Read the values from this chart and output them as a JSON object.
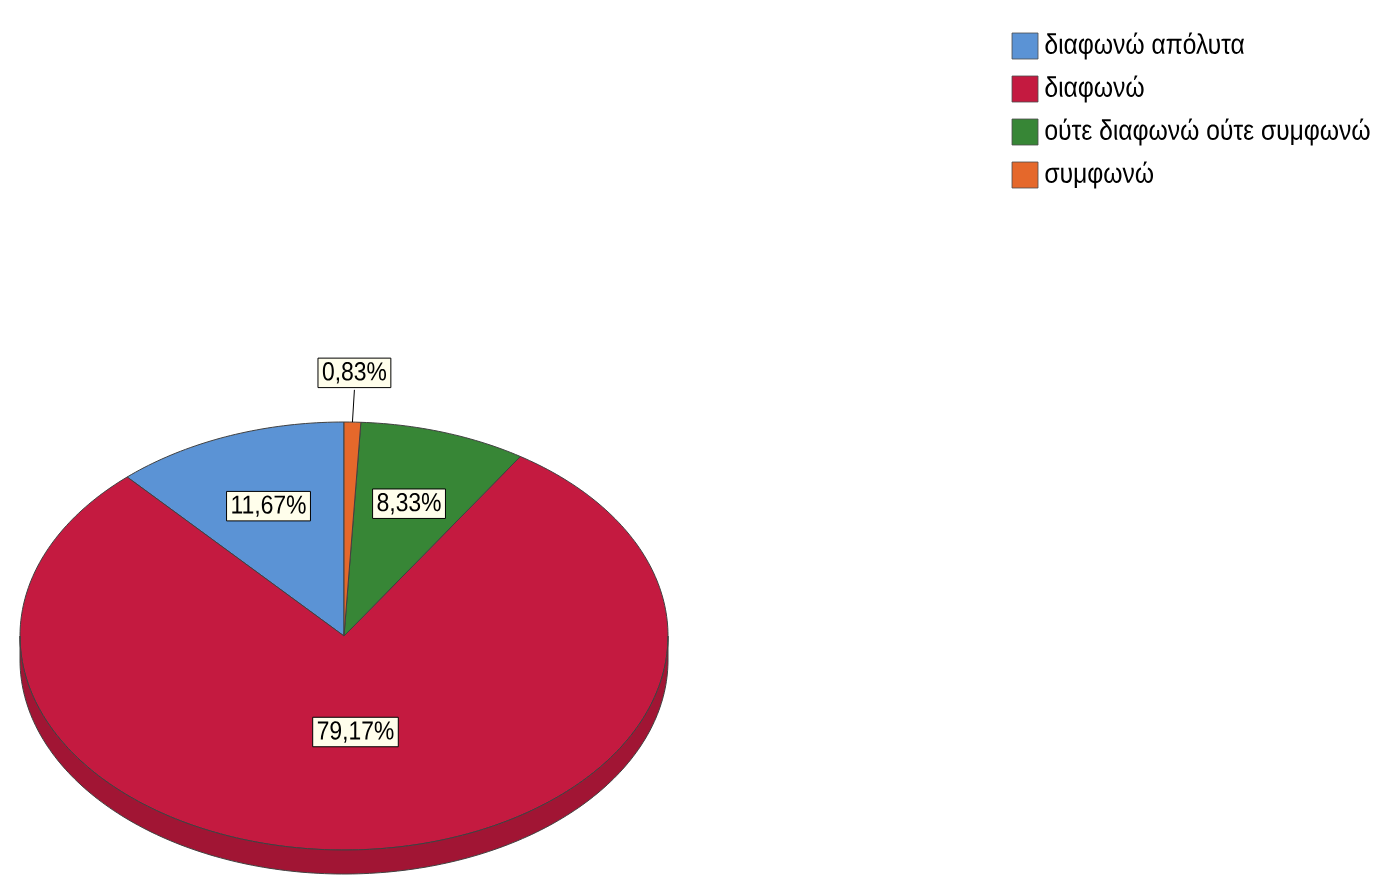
{
  "chart_data": {
    "type": "pie",
    "categories": [
      "διαφωνώ απόλυτα",
      "διαφωνώ",
      "ούτε διαφωνώ ούτε συμφωνώ",
      "συμφωνώ"
    ],
    "values": [
      11.67,
      79.17,
      8.33,
      0.83
    ],
    "colors": [
      "#5b93d5",
      "#c41a40",
      "#378636",
      "#e5682b"
    ],
    "value_labels": [
      "11,67%",
      "79,17%",
      "8,33%",
      "0,83%"
    ],
    "legend": "top right"
  }
}
